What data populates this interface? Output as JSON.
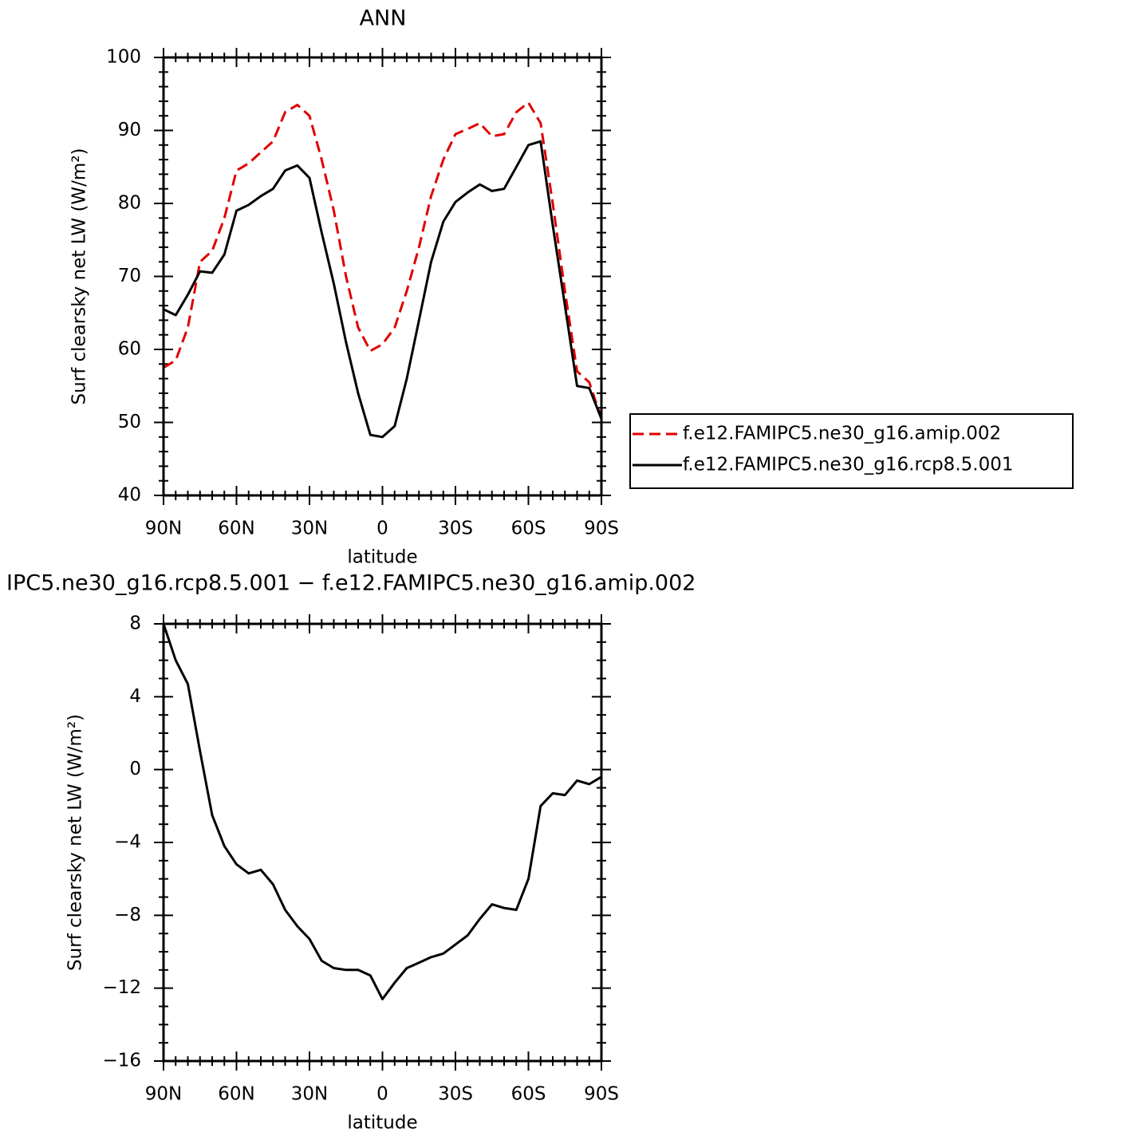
{
  "chart_data": [
    {
      "type": "line",
      "title": "ANN",
      "x_label": "latitude",
      "y_label": "Surf clearsky net LW (W/m²)",
      "xlim": [
        90,
        -90
      ],
      "xticks": [
        {
          "value": 90,
          "label": "90N"
        },
        {
          "value": 60,
          "label": "60N"
        },
        {
          "value": 30,
          "label": "30N"
        },
        0,
        {
          "value": -30,
          "label": "30S"
        },
        {
          "value": -60,
          "label": "60S"
        },
        {
          "value": -90,
          "label": "90S"
        }
      ],
      "ylim": [
        40,
        100
      ],
      "yticks": [
        40,
        50,
        60,
        70,
        80,
        90,
        100
      ],
      "legend": "right",
      "x": [
        90,
        85,
        80,
        75,
        70,
        65,
        60,
        55,
        50,
        45,
        40,
        35,
        30,
        25,
        20,
        15,
        10,
        5,
        0,
        -5,
        -10,
        -15,
        -20,
        -25,
        -30,
        -35,
        -40,
        -45,
        -50,
        -55,
        -60,
        -65,
        -70,
        -75,
        -80,
        -85,
        -90
      ],
      "series": [
        {
          "name": "f.e12.FAMIPC5.ne30_g16.amip.002",
          "color": "#e00000",
          "style": "dashed",
          "values": [
            57.5,
            58.5,
            63,
            72,
            73.5,
            78,
            84.5,
            85.5,
            87,
            88.5,
            92.5,
            93.5,
            92,
            86,
            79,
            70,
            63,
            59.8,
            60.7,
            63,
            68,
            74,
            81,
            86,
            89.5,
            90.2,
            91,
            89.2,
            89.5,
            92.5,
            93.8,
            91,
            80,
            68,
            57,
            55.5,
            50.5
          ]
        },
        {
          "name": "f.e12.FAMIPC5.ne30_g16.rcp8.5.001",
          "color": "#000000",
          "style": "solid",
          "values": [
            65.5,
            64.7,
            67.5,
            70.7,
            70.5,
            73,
            79,
            79.8,
            81,
            82,
            84.5,
            85.2,
            83.5,
            76,
            69,
            61,
            54,
            48.3,
            48,
            49.5,
            56,
            64,
            72,
            77.5,
            80.2,
            81.5,
            82.6,
            81.7,
            82,
            85,
            88,
            88.5,
            77,
            66,
            55,
            54.7,
            50.5
          ]
        }
      ]
    },
    {
      "type": "line",
      "title": "IPC5.ne30_g16.rcp8.5.001 − f.e12.FAMIPC5.ne30_g16.amip.002",
      "x_label": "latitude",
      "y_label": "Surf clearsky net LW (W/m²)",
      "xlim": [
        90,
        -90
      ],
      "xticks": [
        {
          "value": 90,
          "label": "90N"
        },
        {
          "value": 60,
          "label": "60N"
        },
        {
          "value": 30,
          "label": "30N"
        },
        0,
        {
          "value": -30,
          "label": "30S"
        },
        {
          "value": -60,
          "label": "60S"
        },
        {
          "value": -90,
          "label": "90S"
        }
      ],
      "ylim": [
        -16,
        8
      ],
      "yticks": [
        {
          "value": -16,
          "label": "−16"
        },
        {
          "value": -12,
          "label": "−12"
        },
        {
          "value": -8,
          "label": "−8"
        },
        {
          "value": -4,
          "label": "−4"
        },
        0,
        4,
        8
      ],
      "x": [
        90,
        85,
        80,
        75,
        70,
        65,
        60,
        55,
        50,
        45,
        40,
        35,
        30,
        25,
        20,
        15,
        10,
        5,
        0,
        -5,
        -10,
        -15,
        -20,
        -25,
        -30,
        -35,
        -40,
        -45,
        -50,
        -55,
        -60,
        -65,
        -70,
        -75,
        -80,
        -85,
        -90
      ],
      "series": [
        {
          "color": "#000000",
          "style": "solid",
          "values": [
            8,
            6,
            4.7,
            1,
            -2.5,
            -4.2,
            -5.2,
            -5.7,
            -5.5,
            -6.3,
            -7.7,
            -8.6,
            -9.3,
            -10.5,
            -10.9,
            -11,
            -11,
            -11.3,
            -12.6,
            -11.7,
            -10.9,
            -10.6,
            -10.3,
            -10.1,
            -9.6,
            -9.1,
            -8.2,
            -7.4,
            -7.6,
            -7.7,
            -6,
            -2,
            -1.3,
            -1.4,
            -0.6,
            -0.8,
            -0.4
          ]
        }
      ]
    }
  ]
}
